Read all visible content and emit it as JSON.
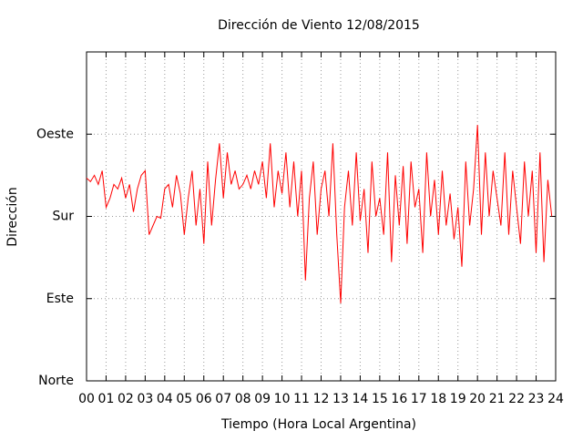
{
  "chart_data": {
    "type": "line",
    "title": "Dirección de Viento 12/08/2015",
    "xlabel": "Tiempo (Hora Local Argentina)",
    "ylabel": "Dirección",
    "color": "#ff0000",
    "grid": true,
    "xlim": [
      0,
      24
    ],
    "ylim": [
      0,
      360
    ],
    "xticks": [
      {
        "value": 0,
        "label": "00"
      },
      {
        "value": 1,
        "label": "01"
      },
      {
        "value": 2,
        "label": "02"
      },
      {
        "value": 3,
        "label": "03"
      },
      {
        "value": 4,
        "label": "04"
      },
      {
        "value": 5,
        "label": "05"
      },
      {
        "value": 6,
        "label": "06"
      },
      {
        "value": 7,
        "label": "07"
      },
      {
        "value": 8,
        "label": "08"
      },
      {
        "value": 9,
        "label": "09"
      },
      10,
      11,
      12,
      13,
      14,
      15,
      16,
      17,
      18,
      19,
      20,
      21,
      22,
      23,
      24
    ],
    "yticks": [
      {
        "value": 0,
        "label": "Norte"
      },
      {
        "value": 90,
        "label": "Este"
      },
      {
        "value": 180,
        "label": "Sur"
      },
      {
        "value": 270,
        "label": "Oeste"
      },
      {
        "value": 360,
        "label": ""
      }
    ],
    "x": [
      0,
      0.2,
      0.4,
      0.6,
      0.8,
      1,
      1.2,
      1.4,
      1.6,
      1.8,
      2,
      2.2,
      2.4,
      2.6,
      2.8,
      3,
      3.2,
      3.4,
      3.6,
      3.8,
      4,
      4.2,
      4.4,
      4.6,
      4.8,
      5,
      5.2,
      5.4,
      5.6,
      5.8,
      6,
      6.2,
      6.4,
      6.6,
      6.8,
      7,
      7.2,
      7.4,
      7.6,
      7.8,
      8,
      8.2,
      8.4,
      8.6,
      8.8,
      9,
      9.2,
      9.4,
      9.6,
      9.8,
      10,
      10.2,
      10.4,
      10.6,
      10.8,
      11,
      11.2,
      11.4,
      11.6,
      11.8,
      12,
      12.2,
      12.4,
      12.6,
      12.8,
      13,
      13.2,
      13.4,
      13.6,
      13.8,
      14,
      14.2,
      14.4,
      14.6,
      14.8,
      15,
      15.2,
      15.4,
      15.6,
      15.8,
      16,
      16.2,
      16.4,
      16.6,
      16.8,
      17,
      17.2,
      17.4,
      17.6,
      17.8,
      18,
      18.2,
      18.4,
      18.6,
      18.8,
      19,
      19.2,
      19.4,
      19.6,
      19.8,
      20,
      20.2,
      20.4,
      20.6,
      20.8,
      21,
      21.2,
      21.4,
      21.6,
      21.8,
      22,
      22.2,
      22.4,
      22.6,
      22.8,
      23,
      23.2,
      23.4,
      23.6,
      23.8
    ],
    "values": [
      222,
      218,
      225,
      215,
      230,
      190,
      200,
      215,
      210,
      222,
      200,
      215,
      185,
      210,
      225,
      230,
      160,
      170,
      180,
      178,
      210,
      215,
      190,
      225,
      205,
      160,
      200,
      230,
      170,
      210,
      150,
      240,
      170,
      220,
      260,
      200,
      250,
      215,
      230,
      210,
      215,
      225,
      210,
      230,
      215,
      240,
      200,
      260,
      190,
      230,
      205,
      250,
      190,
      240,
      180,
      230,
      110,
      200,
      240,
      160,
      210,
      230,
      180,
      260,
      160,
      85,
      190,
      230,
      170,
      250,
      175,
      210,
      140,
      240,
      180,
      200,
      160,
      250,
      130,
      225,
      170,
      235,
      150,
      240,
      190,
      210,
      140,
      250,
      180,
      220,
      160,
      230,
      170,
      205,
      155,
      190,
      125,
      240,
      170,
      210,
      280,
      160,
      250,
      180,
      230,
      200,
      170,
      250,
      160,
      230,
      190,
      150,
      240,
      180,
      230,
      140,
      250,
      130,
      220,
      180
    ]
  }
}
